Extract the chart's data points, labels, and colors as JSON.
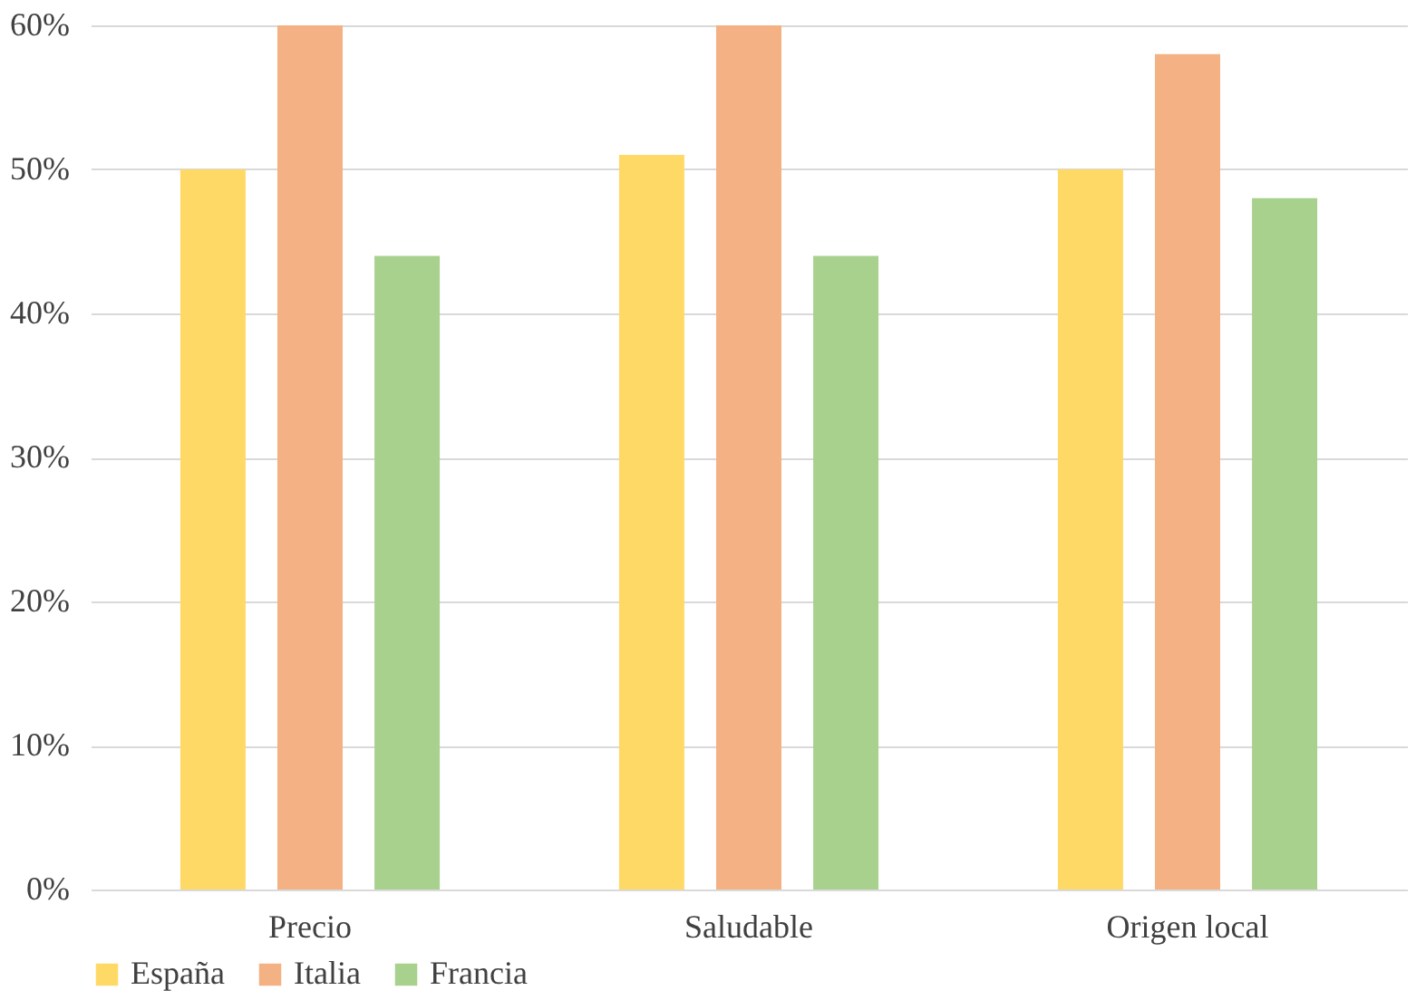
{
  "chart_data": {
    "type": "bar",
    "categories": [
      "Precio",
      "Saludable",
      "Origen local"
    ],
    "series": [
      {
        "name": "España",
        "color": "#ffd966",
        "values": [
          50,
          51,
          50
        ]
      },
      {
        "name": "Italia",
        "color": "#f4b183",
        "values": [
          60,
          60,
          58
        ]
      },
      {
        "name": "Francia",
        "color": "#a9d18e",
        "values": [
          44,
          44,
          48
        ]
      }
    ],
    "ylim": [
      0,
      60
    ],
    "yticks": [
      {
        "value": 0,
        "label": "0%"
      },
      {
        "value": 10,
        "label": "10%"
      },
      {
        "value": 20,
        "label": "20%"
      },
      {
        "value": 30,
        "label": "30%"
      },
      {
        "value": 40,
        "label": "40%"
      },
      {
        "value": 50,
        "label": "50%"
      },
      {
        "value": 60,
        "label": "60%"
      }
    ],
    "grid": "y",
    "legend": "bottom left"
  }
}
